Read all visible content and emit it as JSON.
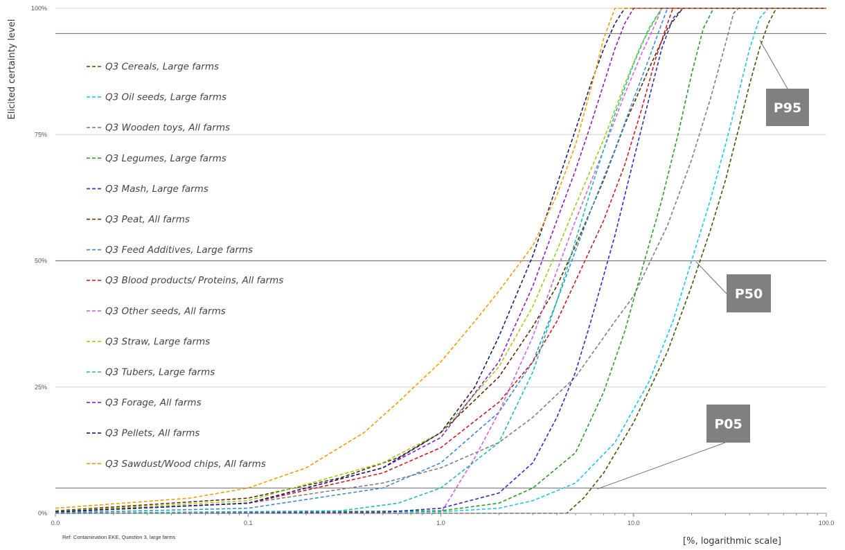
{
  "chart_data": {
    "type": "line",
    "title": "",
    "ylabel": "Elicited certainty level",
    "xlabel": "[%, logarithmic scale]",
    "footnote": "Ref: Contamination EKE, Question 3, large farms",
    "x_scale": "log",
    "xlim": [
      0.01,
      100
    ],
    "ylim": [
      0,
      1
    ],
    "x_ticks": [
      {
        "value": 0.01,
        "label": "0.0"
      },
      {
        "value": 0.1,
        "label": "0.1"
      },
      {
        "value": 1,
        "label": "1.0"
      },
      {
        "value": 10,
        "label": "10.0"
      },
      {
        "value": 100,
        "label": "100.0"
      }
    ],
    "y_ticks": [
      {
        "value": 0,
        "label": "0%"
      },
      {
        "value": 0.25,
        "label": "25%"
      },
      {
        "value": 0.5,
        "label": "50%"
      },
      {
        "value": 0.75,
        "label": "75%"
      },
      {
        "value": 1,
        "label": "100%"
      }
    ],
    "grid": true,
    "reference_lines": [
      {
        "label": "P05",
        "y": 0.05,
        "badge_color": "#808080"
      },
      {
        "label": "P50",
        "y": 0.5,
        "badge_color": "#808080"
      },
      {
        "label": "P95",
        "y": 0.95,
        "badge_color": "#808080"
      }
    ],
    "legend_placement": "left",
    "line_style": "dashed",
    "series": [
      {
        "name": "Q3 Cereals, Large farms",
        "color": "#3a5a00",
        "points": [
          [
            0.01,
            0
          ],
          [
            4.5,
            0
          ],
          [
            5.5,
            0.03
          ],
          [
            7,
            0.08
          ],
          [
            10,
            0.18
          ],
          [
            15,
            0.32
          ],
          [
            20,
            0.45
          ],
          [
            25,
            0.56
          ],
          [
            30,
            0.66
          ],
          [
            35,
            0.76
          ],
          [
            40,
            0.85
          ],
          [
            45,
            0.92
          ],
          [
            50,
            0.97
          ],
          [
            55,
            1
          ],
          [
            100,
            1
          ]
        ]
      },
      {
        "name": "Q3 Oil seeds, Large farms",
        "color": "#17c8e0",
        "points": [
          [
            0.01,
            0
          ],
          [
            1,
            0.003
          ],
          [
            2,
            0.01
          ],
          [
            3,
            0.025
          ],
          [
            5,
            0.06
          ],
          [
            8,
            0.14
          ],
          [
            12,
            0.26
          ],
          [
            16,
            0.38
          ],
          [
            20,
            0.5
          ],
          [
            25,
            0.62
          ],
          [
            30,
            0.73
          ],
          [
            35,
            0.83
          ],
          [
            40,
            0.92
          ],
          [
            45,
            0.98
          ],
          [
            50,
            1
          ],
          [
            100,
            1
          ]
        ]
      },
      {
        "name": "Q3 Wooden toys, All farms",
        "color": "#7f7f7f",
        "points": [
          [
            0.01,
            0.002
          ],
          [
            0.1,
            0.02
          ],
          [
            0.5,
            0.06
          ],
          [
            1,
            0.09
          ],
          [
            2,
            0.14
          ],
          [
            3,
            0.19
          ],
          [
            5,
            0.27
          ],
          [
            8,
            0.38
          ],
          [
            10,
            0.43
          ],
          [
            15,
            0.57
          ],
          [
            20,
            0.7
          ],
          [
            25,
            0.82
          ],
          [
            30,
            0.93
          ],
          [
            33,
            0.99
          ],
          [
            35,
            1
          ],
          [
            100,
            1
          ]
        ]
      },
      {
        "name": "Q3 Legumes, Large farms",
        "color": "#2a9a2a",
        "points": [
          [
            0.01,
            0
          ],
          [
            1,
            0.005
          ],
          [
            2,
            0.02
          ],
          [
            3,
            0.05
          ],
          [
            5,
            0.12
          ],
          [
            7,
            0.24
          ],
          [
            9,
            0.36
          ],
          [
            11,
            0.48
          ],
          [
            14,
            0.62
          ],
          [
            17,
            0.75
          ],
          [
            20,
            0.87
          ],
          [
            23,
            0.96
          ],
          [
            26,
            1
          ],
          [
            100,
            1
          ]
        ]
      },
      {
        "name": "Q3 Mash, Large farms",
        "color": "#2a2acc",
        "points": [
          [
            0.01,
            0
          ],
          [
            0.5,
            0.002
          ],
          [
            1,
            0.01
          ],
          [
            2,
            0.04
          ],
          [
            3,
            0.1
          ],
          [
            4,
            0.19
          ],
          [
            5,
            0.28
          ],
          [
            6,
            0.38
          ],
          [
            8,
            0.55
          ],
          [
            10,
            0.7
          ],
          [
            12,
            0.82
          ],
          [
            14,
            0.92
          ],
          [
            16,
            0.98
          ],
          [
            18,
            1
          ],
          [
            100,
            1
          ]
        ]
      },
      {
        "name": "Q3 Peat, All farms",
        "color": "#5a2a00",
        "points": [
          [
            0.01,
            0.005
          ],
          [
            0.1,
            0.03
          ],
          [
            0.3,
            0.07
          ],
          [
            0.6,
            0.11
          ],
          [
            1,
            0.16
          ],
          [
            2,
            0.27
          ],
          [
            3,
            0.37
          ],
          [
            4,
            0.45
          ],
          [
            5,
            0.53
          ],
          [
            7,
            0.66
          ],
          [
            9,
            0.77
          ],
          [
            12,
            0.88
          ],
          [
            15,
            0.96
          ],
          [
            18,
            1
          ],
          [
            100,
            1
          ]
        ]
      },
      {
        "name": "Q3 Feed Additives, Large farms",
        "color": "#3a8ad0",
        "points": [
          [
            0.01,
            0.001
          ],
          [
            0.1,
            0.01
          ],
          [
            0.5,
            0.05
          ],
          [
            1,
            0.1
          ],
          [
            2,
            0.2
          ],
          [
            3,
            0.3
          ],
          [
            4,
            0.42
          ],
          [
            5,
            0.52
          ],
          [
            6,
            0.6
          ],
          [
            8,
            0.72
          ],
          [
            10,
            0.82
          ],
          [
            12,
            0.9
          ],
          [
            14,
            0.97
          ],
          [
            15,
            1
          ],
          [
            100,
            1
          ]
        ]
      },
      {
        "name": "Q3 Blood products/ Proteins, All farms",
        "color": "#cc1a1a",
        "points": [
          [
            0.01,
            0.003
          ],
          [
            0.1,
            0.02
          ],
          [
            0.5,
            0.08
          ],
          [
            1,
            0.13
          ],
          [
            2,
            0.22
          ],
          [
            3,
            0.3
          ],
          [
            4,
            0.38
          ],
          [
            5,
            0.46
          ],
          [
            7,
            0.58
          ],
          [
            9,
            0.69
          ],
          [
            11,
            0.8
          ],
          [
            13,
            0.9
          ],
          [
            15,
            0.97
          ],
          [
            16,
            1
          ],
          [
            100,
            1
          ]
        ]
      },
      {
        "name": "Q3 Other seeds, All farms",
        "color": "#d060e0",
        "points": [
          [
            0.01,
            0
          ],
          [
            1,
            0
          ],
          [
            1.2,
            0.05
          ],
          [
            1.5,
            0.11
          ],
          [
            2,
            0.2
          ],
          [
            3,
            0.35
          ],
          [
            4,
            0.48
          ],
          [
            5,
            0.58
          ],
          [
            7,
            0.72
          ],
          [
            9,
            0.83
          ],
          [
            11,
            0.91
          ],
          [
            13,
            0.97
          ],
          [
            14,
            1
          ],
          [
            100,
            1
          ]
        ]
      },
      {
        "name": "Q3 Straw, Large farms",
        "color": "#9acd1a",
        "points": [
          [
            0.01,
            0.004
          ],
          [
            0.1,
            0.025
          ],
          [
            0.5,
            0.1
          ],
          [
            1,
            0.16
          ],
          [
            2,
            0.29
          ],
          [
            3,
            0.41
          ],
          [
            4,
            0.52
          ],
          [
            5,
            0.61
          ],
          [
            7,
            0.74
          ],
          [
            9,
            0.85
          ],
          [
            11,
            0.93
          ],
          [
            13,
            0.98
          ],
          [
            14,
            1
          ],
          [
            100,
            1
          ]
        ]
      },
      {
        "name": "Q3 Tubers, Large farms",
        "color": "#1ac0a0",
        "points": [
          [
            0.01,
            0
          ],
          [
            0.3,
            0.005
          ],
          [
            0.6,
            0.02
          ],
          [
            1,
            0.05
          ],
          [
            2,
            0.14
          ],
          [
            3,
            0.28
          ],
          [
            4,
            0.42
          ],
          [
            5,
            0.54
          ],
          [
            6,
            0.64
          ],
          [
            8,
            0.79
          ],
          [
            10,
            0.89
          ],
          [
            12,
            0.96
          ],
          [
            14,
            1
          ],
          [
            100,
            1
          ]
        ]
      },
      {
        "name": "Q3 Forage, All farms",
        "color": "#8a1acc",
        "points": [
          [
            0.01,
            0.003
          ],
          [
            0.1,
            0.02
          ],
          [
            0.5,
            0.09
          ],
          [
            1,
            0.15
          ],
          [
            2,
            0.3
          ],
          [
            3,
            0.45
          ],
          [
            4,
            0.58
          ],
          [
            5,
            0.68
          ],
          [
            6,
            0.77
          ],
          [
            7,
            0.85
          ],
          [
            8,
            0.92
          ],
          [
            9,
            0.97
          ],
          [
            10,
            1
          ],
          [
            100,
            1
          ]
        ]
      },
      {
        "name": "Q3 Pellets, All farms",
        "color": "#1a1a6a",
        "points": [
          [
            0.01,
            0.003
          ],
          [
            0.1,
            0.02
          ],
          [
            0.5,
            0.09
          ],
          [
            1,
            0.16
          ],
          [
            1.5,
            0.25
          ],
          [
            2,
            0.35
          ],
          [
            3,
            0.51
          ],
          [
            4,
            0.65
          ],
          [
            5,
            0.76
          ],
          [
            6,
            0.85
          ],
          [
            7,
            0.92
          ],
          [
            8,
            0.97
          ],
          [
            9,
            1
          ],
          [
            100,
            1
          ]
        ]
      },
      {
        "name": "Q3 Sawdust/Wood chips, All farms",
        "color": "#f59a00",
        "points": [
          [
            0.01,
            0.01
          ],
          [
            0.05,
            0.03
          ],
          [
            0.1,
            0.05
          ],
          [
            0.2,
            0.09
          ],
          [
            0.4,
            0.16
          ],
          [
            0.6,
            0.22
          ],
          [
            1,
            0.3
          ],
          [
            1.5,
            0.38
          ],
          [
            2,
            0.44
          ],
          [
            3,
            0.53
          ],
          [
            4,
            0.63
          ],
          [
            5,
            0.73
          ],
          [
            6,
            0.84
          ],
          [
            7,
            0.94
          ],
          [
            8,
            1
          ],
          [
            100,
            1
          ]
        ]
      }
    ]
  }
}
